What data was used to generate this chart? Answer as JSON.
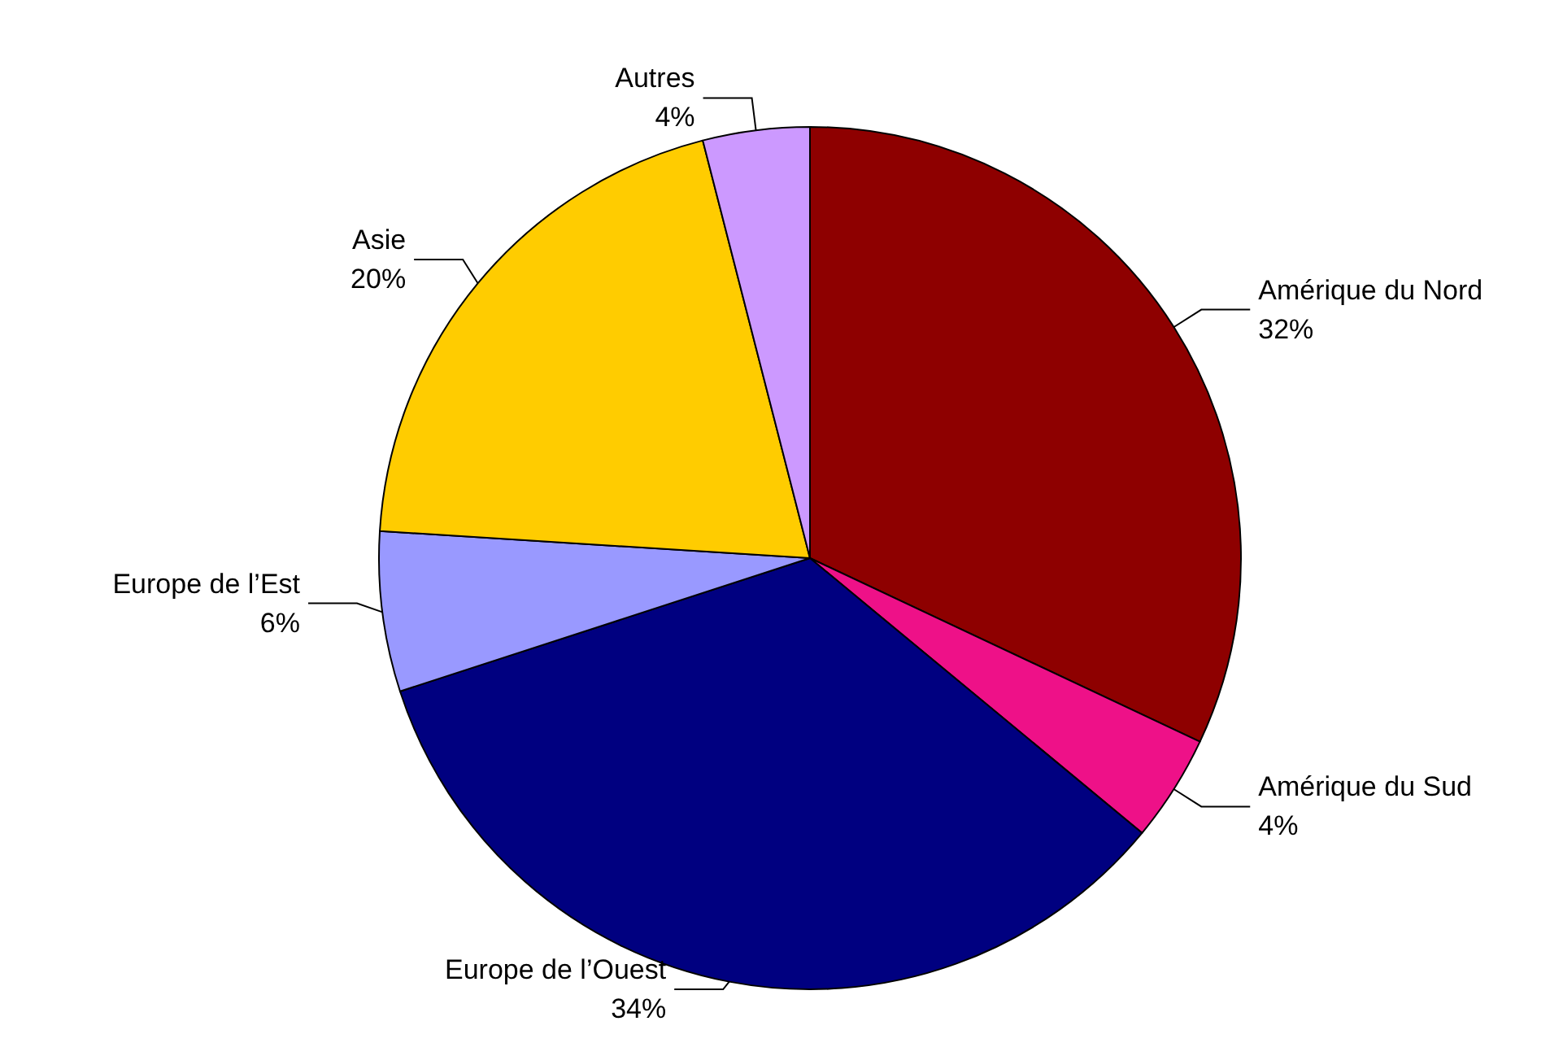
{
  "chart_data": {
    "type": "pie",
    "categories": [
      "Amérique du Nord",
      "Amérique du Sud",
      "Europe de l’Ouest",
      "Europe de l’Est",
      "Asie",
      "Autres"
    ],
    "values": [
      32,
      4,
      34,
      6,
      20,
      4
    ],
    "value_labels": [
      "32%",
      "4%",
      "34%",
      "6%",
      "20%",
      "4%"
    ],
    "colors": [
      "#8e0000",
      "#ee1188",
      "#000080",
      "#9999ff",
      "#ffcc00",
      "#cc99ff"
    ],
    "legend": false
  }
}
